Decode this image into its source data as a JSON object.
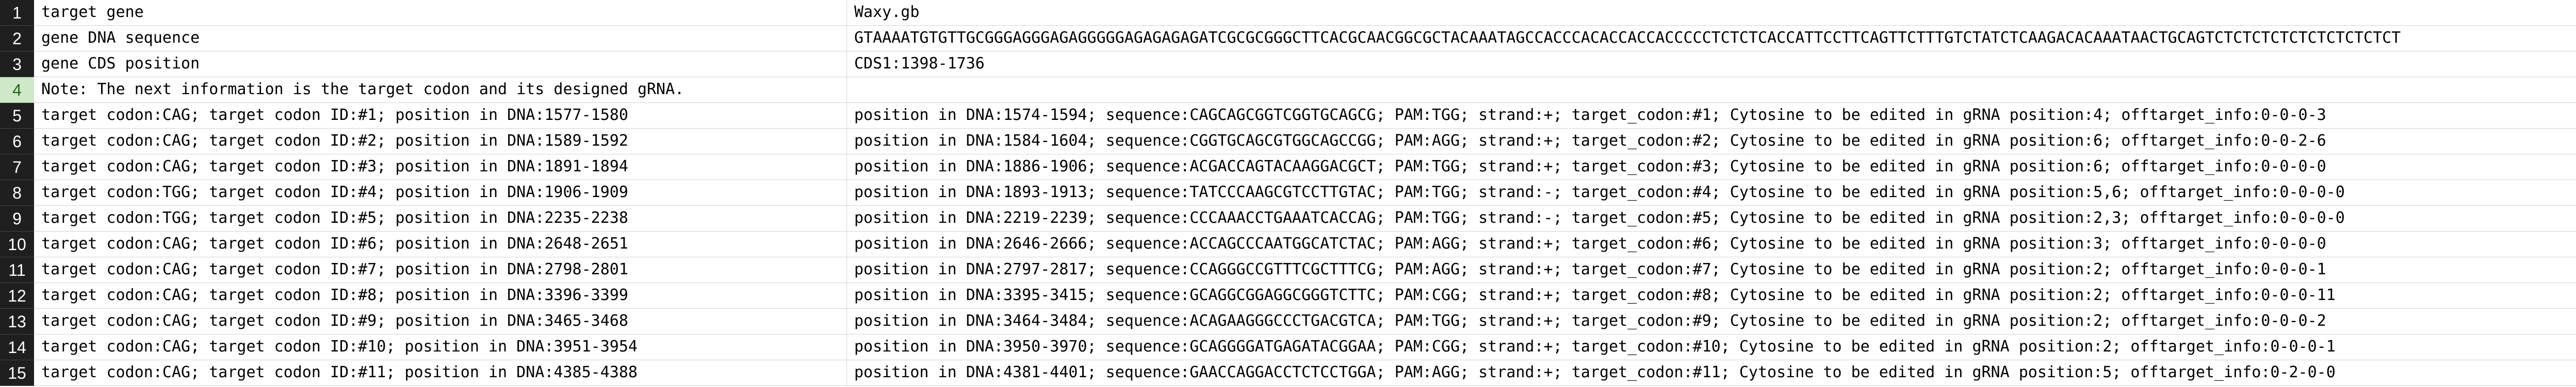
{
  "sheet": {
    "rows": [
      {
        "num": "1",
        "a": "target gene",
        "b": "Waxy.gb"
      },
      {
        "num": "2",
        "a": "gene DNA sequence",
        "b": "GTAAAATGTGTTGCGGGAGGGAGAGGGGGAGAGAGAGATCGCGCGGGCTTCACGCAACGGCGCTACAAATAGCCACCCACACCACCACCCCCTCTCTCACCATTCCTTCAGTTCTTTGTCTATCTCAAGACACAAATAACTGCAGTCTCTCTCTCTCTCTCTCTCT"
      },
      {
        "num": "3",
        "a": "gene CDS position",
        "b": "CDS1:1398-1736"
      },
      {
        "num": "4",
        "a": "Note: The next information is the target codon and its designed gRNA.",
        "b": ""
      },
      {
        "num": "5",
        "a": "target codon:CAG; target codon ID:#1; position in DNA:1577-1580",
        "b": "position in DNA:1574-1594; sequence:CAGCAGCGGTCGGTGCAGCG; PAM:TGG; strand:+; target_codon:#1; Cytosine to be edited in gRNA position:4; offtarget_info:0-0-0-3"
      },
      {
        "num": "6",
        "a": "target codon:CAG; target codon ID:#2; position in DNA:1589-1592",
        "b": "position in DNA:1584-1604; sequence:CGGTGCAGCGTGGCAGCCGG; PAM:AGG; strand:+; target_codon:#2; Cytosine to be edited in gRNA position:6; offtarget_info:0-0-2-6"
      },
      {
        "num": "7",
        "a": "target codon:CAG; target codon ID:#3; position in DNA:1891-1894",
        "b": "position in DNA:1886-1906; sequence:ACGACCAGTACAAGGACGCT; PAM:TGG; strand:+; target_codon:#3; Cytosine to be edited in gRNA position:6; offtarget_info:0-0-0-0"
      },
      {
        "num": "8",
        "a": "target codon:TGG; target codon ID:#4; position in DNA:1906-1909",
        "b": "position in DNA:1893-1913; sequence:TATCCCAAGCGTCCTTGTAC; PAM:TGG; strand:-; target_codon:#4; Cytosine to be edited in gRNA position:5,6; offtarget_info:0-0-0-0"
      },
      {
        "num": "9",
        "a": "target codon:TGG; target codon ID:#5; position in DNA:2235-2238",
        "b": "position in DNA:2219-2239; sequence:CCCAAACCTGAAATCACCAG; PAM:TGG; strand:-; target_codon:#5; Cytosine to be edited in gRNA position:2,3; offtarget_info:0-0-0-0"
      },
      {
        "num": "10",
        "a": "target codon:CAG; target codon ID:#6; position in DNA:2648-2651",
        "b": "position in DNA:2646-2666; sequence:ACCAGCCCAATGGCATCTAC; PAM:AGG; strand:+; target_codon:#6; Cytosine to be edited in gRNA position:3; offtarget_info:0-0-0-0"
      },
      {
        "num": "11",
        "a": "target codon:CAG; target codon ID:#7; position in DNA:2798-2801",
        "b": "position in DNA:2797-2817; sequence:CCAGGGCCGTTTCGCTTTCG; PAM:AGG; strand:+; target_codon:#7; Cytosine to be edited in gRNA position:2; offtarget_info:0-0-0-1"
      },
      {
        "num": "12",
        "a": "target codon:CAG; target codon ID:#8; position in DNA:3396-3399",
        "b": "position in DNA:3395-3415; sequence:GCAGGCGGAGGCGGGTCTTC; PAM:CGG; strand:+; target_codon:#8; Cytosine to be edited in gRNA position:2; offtarget_info:0-0-0-11"
      },
      {
        "num": "13",
        "a": "target codon:CAG; target codon ID:#9; position in DNA:3465-3468",
        "b": "position in DNA:3464-3484; sequence:ACAGAAGGGCCCTGACGTCA; PAM:TGG; strand:+; target_codon:#9; Cytosine to be edited in gRNA position:2; offtarget_info:0-0-0-2"
      },
      {
        "num": "14",
        "a": "target codon:CAG; target codon ID:#10; position in DNA:3951-3954",
        "b": "position in DNA:3950-3970; sequence:GCAGGGGATGAGATACGGAA; PAM:CGG; strand:+; target_codon:#10; Cytosine to be edited in gRNA position:2; offtarget_info:0-0-0-1"
      },
      {
        "num": "15",
        "a": "target codon:CAG; target codon ID:#11; position in DNA:4385-4388",
        "b": "position in DNA:4381-4401; sequence:GAACCAGGACCTCTCCTGGA; PAM:AGG; strand:+; target_codon:#11; Cytosine to be edited in gRNA position:5; offtarget_info:0-2-0-0"
      }
    ]
  }
}
